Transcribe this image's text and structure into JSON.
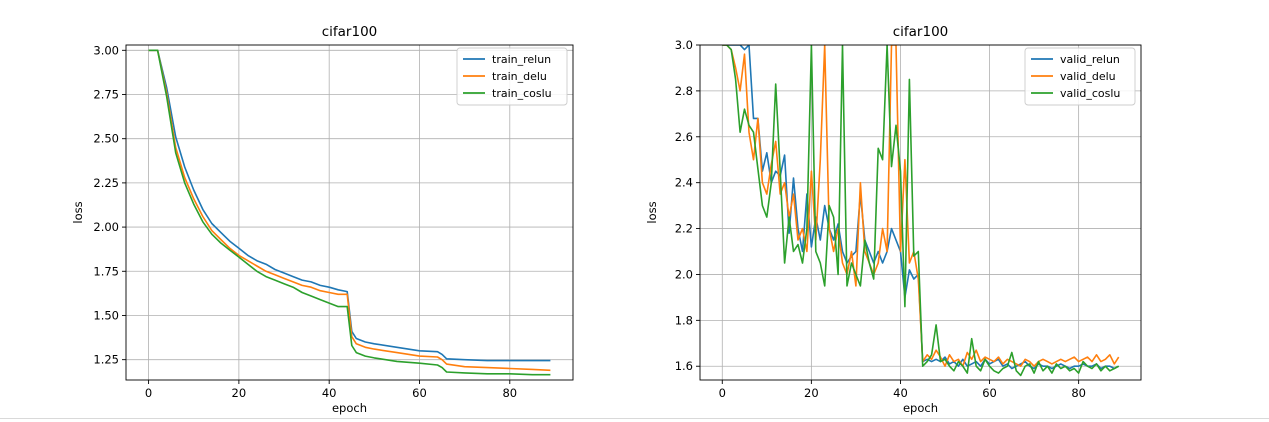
{
  "chart_data": [
    {
      "type": "line",
      "title": "cifar100",
      "xlabel": "epoch",
      "ylabel": "loss",
      "xlim": [
        -5,
        94
      ],
      "ylim": [
        1.135,
        3.03
      ],
      "xticks": [
        0,
        20,
        40,
        60,
        80
      ],
      "yticks": [
        1.25,
        1.5,
        1.75,
        2.0,
        2.25,
        2.5,
        2.75,
        3.0
      ],
      "ytick_labels": [
        "1.25",
        "1.50",
        "1.75",
        "2.00",
        "2.25",
        "2.50",
        "2.75",
        "3.00"
      ],
      "grid": true,
      "legend_position": "upper right",
      "x": [
        0,
        2,
        4,
        6,
        8,
        10,
        12,
        14,
        16,
        18,
        20,
        22,
        24,
        26,
        28,
        30,
        32,
        34,
        36,
        38,
        40,
        42,
        44,
        45,
        46,
        48,
        50,
        55,
        60,
        64,
        65,
        66,
        70,
        75,
        80,
        85,
        89
      ],
      "series": [
        {
          "name": "train_relun",
          "color": "#1f77b4",
          "values": [
            3.0,
            3.0,
            2.79,
            2.51,
            2.34,
            2.21,
            2.1,
            2.02,
            1.97,
            1.92,
            1.88,
            1.84,
            1.81,
            1.79,
            1.76,
            1.74,
            1.72,
            1.7,
            1.69,
            1.67,
            1.66,
            1.645,
            1.635,
            1.41,
            1.37,
            1.35,
            1.34,
            1.32,
            1.3,
            1.295,
            1.28,
            1.255,
            1.25,
            1.245,
            1.245,
            1.245,
            1.245
          ]
        },
        {
          "name": "train_delu",
          "color": "#ff7f0e",
          "values": [
            3.0,
            3.0,
            2.76,
            2.45,
            2.28,
            2.16,
            2.06,
            1.98,
            1.93,
            1.88,
            1.84,
            1.81,
            1.78,
            1.75,
            1.73,
            1.71,
            1.69,
            1.67,
            1.66,
            1.64,
            1.63,
            1.62,
            1.62,
            1.38,
            1.34,
            1.32,
            1.31,
            1.29,
            1.27,
            1.265,
            1.25,
            1.225,
            1.21,
            1.205,
            1.2,
            1.195,
            1.19
          ]
        },
        {
          "name": "train_coslu",
          "color": "#2ca02c",
          "values": [
            3.0,
            3.0,
            2.74,
            2.42,
            2.25,
            2.13,
            2.03,
            1.96,
            1.91,
            1.87,
            1.83,
            1.79,
            1.75,
            1.72,
            1.7,
            1.68,
            1.66,
            1.63,
            1.61,
            1.59,
            1.57,
            1.55,
            1.55,
            1.33,
            1.29,
            1.27,
            1.26,
            1.24,
            1.23,
            1.22,
            1.205,
            1.18,
            1.175,
            1.17,
            1.17,
            1.165,
            1.165
          ]
        }
      ]
    },
    {
      "type": "line",
      "title": "cifar100",
      "xlabel": "epoch",
      "ylabel": "loss",
      "xlim": [
        -5,
        94
      ],
      "ylim": [
        1.54,
        3.0
      ],
      "xticks": [
        0,
        20,
        40,
        60,
        80
      ],
      "yticks": [
        1.6,
        1.8,
        2.0,
        2.2,
        2.4,
        2.6,
        2.8,
        3.0
      ],
      "ytick_labels": [
        "1.6",
        "1.8",
        "2.0",
        "2.2",
        "2.4",
        "2.6",
        "2.8",
        "3.0"
      ],
      "grid": true,
      "legend_position": "upper right",
      "x": [
        0,
        1,
        2,
        3,
        4,
        5,
        6,
        7,
        8,
        9,
        10,
        11,
        12,
        13,
        14,
        15,
        16,
        17,
        18,
        19,
        20,
        21,
        22,
        23,
        24,
        25,
        26,
        27,
        28,
        29,
        30,
        31,
        32,
        33,
        34,
        35,
        36,
        37,
        38,
        39,
        40,
        41,
        42,
        43,
        44,
        45,
        46,
        47,
        48,
        49,
        50,
        51,
        52,
        53,
        54,
        55,
        56,
        57,
        58,
        59,
        60,
        61,
        62,
        63,
        64,
        65,
        66,
        67,
        68,
        69,
        70,
        71,
        72,
        73,
        74,
        75,
        76,
        77,
        78,
        79,
        80,
        81,
        82,
        83,
        84,
        85,
        86,
        87,
        88,
        89
      ],
      "series": [
        {
          "name": "valid_relun",
          "color": "#1f77b4",
          "values": [
            3.0,
            3.0,
            3.0,
            3.0,
            3.0,
            2.98,
            3.0,
            2.68,
            2.68,
            2.45,
            2.53,
            2.4,
            2.45,
            2.43,
            2.52,
            2.18,
            2.42,
            2.2,
            2.1,
            2.35,
            2.12,
            2.25,
            2.15,
            2.3,
            2.2,
            2.15,
            2.22,
            2.1,
            2.05,
            2.08,
            2.1,
            2.35,
            2.15,
            2.1,
            2.05,
            2.1,
            2.05,
            2.1,
            2.2,
            2.15,
            2.1,
            1.9,
            2.02,
            1.98,
            2.0,
            1.62,
            1.63,
            1.62,
            1.63,
            1.62,
            1.64,
            1.61,
            1.62,
            1.6,
            1.63,
            1.6,
            1.61,
            1.62,
            1.6,
            1.63,
            1.61,
            1.62,
            1.63,
            1.6,
            1.61,
            1.59,
            1.6,
            1.61,
            1.62,
            1.6,
            1.59,
            1.61,
            1.6,
            1.6,
            1.59,
            1.6,
            1.61,
            1.6,
            1.59,
            1.6,
            1.6,
            1.61,
            1.6,
            1.6,
            1.61,
            1.59,
            1.6,
            1.6,
            1.59,
            1.6
          ]
        },
        {
          "name": "valid_delu",
          "color": "#ff7f0e",
          "values": [
            3.0,
            3.0,
            2.98,
            2.9,
            2.8,
            2.96,
            2.62,
            2.5,
            2.68,
            2.4,
            2.35,
            2.48,
            2.58,
            2.35,
            2.4,
            2.25,
            2.35,
            2.15,
            2.2,
            2.1,
            2.45,
            2.15,
            2.5,
            3.0,
            2.2,
            2.1,
            2.2,
            2.05,
            2.0,
            2.1,
            1.95,
            2.4,
            2.1,
            2.05,
            2.0,
            2.05,
            2.2,
            2.1,
            3.0,
            3.0,
            2.1,
            2.5,
            2.05,
            2.1,
            1.98,
            1.62,
            1.65,
            1.63,
            1.67,
            1.64,
            1.6,
            1.65,
            1.62,
            1.63,
            1.6,
            1.66,
            1.63,
            1.67,
            1.62,
            1.64,
            1.63,
            1.62,
            1.64,
            1.61,
            1.63,
            1.62,
            1.61,
            1.6,
            1.63,
            1.62,
            1.6,
            1.62,
            1.63,
            1.62,
            1.61,
            1.62,
            1.63,
            1.62,
            1.63,
            1.64,
            1.62,
            1.63,
            1.64,
            1.62,
            1.65,
            1.62,
            1.63,
            1.65,
            1.61,
            1.64
          ]
        },
        {
          "name": "valid_coslu",
          "color": "#2ca02c",
          "values": [
            3.0,
            3.0,
            2.98,
            2.85,
            2.62,
            2.72,
            2.65,
            2.62,
            2.46,
            2.3,
            2.25,
            2.4,
            2.83,
            2.45,
            2.05,
            2.25,
            2.1,
            2.13,
            2.05,
            2.2,
            3.0,
            2.1,
            2.05,
            1.95,
            2.3,
            2.25,
            2.0,
            3.0,
            1.95,
            2.05,
            2.0,
            1.95,
            2.15,
            2.05,
            1.98,
            2.55,
            2.5,
            3.0,
            2.47,
            2.65,
            2.45,
            1.86,
            2.85,
            2.08,
            2.1,
            1.6,
            1.62,
            1.65,
            1.78,
            1.62,
            1.63,
            1.6,
            1.58,
            1.62,
            1.6,
            1.57,
            1.72,
            1.6,
            1.58,
            1.63,
            1.6,
            1.58,
            1.57,
            1.59,
            1.6,
            1.66,
            1.58,
            1.56,
            1.6,
            1.61,
            1.57,
            1.62,
            1.58,
            1.6,
            1.57,
            1.61,
            1.59,
            1.6,
            1.58,
            1.59,
            1.57,
            1.62,
            1.6,
            1.59,
            1.61,
            1.58,
            1.6,
            1.58,
            1.59,
            1.6
          ]
        }
      ]
    }
  ]
}
